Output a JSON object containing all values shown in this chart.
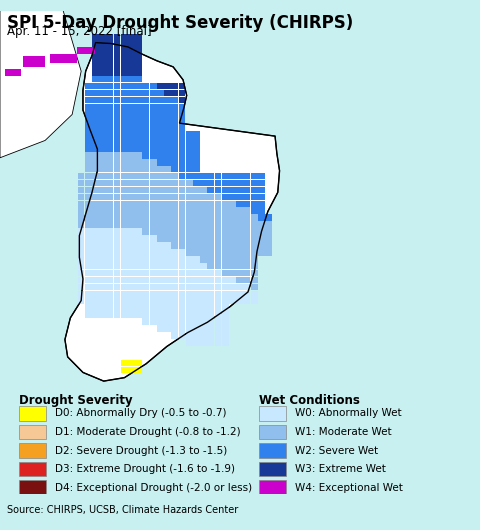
{
  "title": "SPI 5-Day Drought Severity (CHIRPS)",
  "subtitle": "Apr. 11 - 15, 2022 [final]",
  "source": "Source: CHIRPS, UCSB, Climate Hazards Center",
  "bg_color": "#c8f0f0",
  "legend_bg": "#ffffff",
  "source_bg": "#d0d0d0",
  "drought_labels": [
    "D0: Abnormally Dry (-0.5 to -0.7)",
    "D1: Moderate Drought (-0.8 to -1.2)",
    "D2: Severe Drought (-1.3 to -1.5)",
    "D3: Extreme Drought (-1.6 to -1.9)",
    "D4: Exceptional Drought (-2.0 or less)"
  ],
  "drought_colors": [
    "#ffff00",
    "#f5c896",
    "#f5a020",
    "#dd2020",
    "#7a1010"
  ],
  "wet_labels": [
    "W0: Abnormally Wet",
    "W1: Moderate Wet",
    "W2: Severe Wet",
    "W3: Extreme Wet",
    "W4: Exceptional Wet"
  ],
  "wet_colors": [
    "#c8e8ff",
    "#90bfee",
    "#3080ee",
    "#183898",
    "#cc00cc"
  ],
  "title_fontsize": 12,
  "subtitle_fontsize": 8.5,
  "legend_title_fontsize": 8.5,
  "legend_item_fontsize": 7.5,
  "source_fontsize": 7
}
